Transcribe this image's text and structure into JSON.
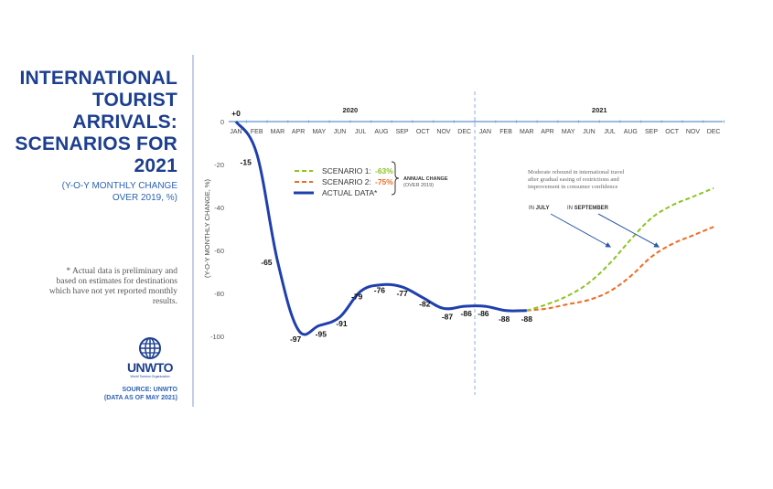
{
  "side_panel": {
    "title_lines": [
      "INTERNATIONAL",
      "TOURIST",
      "ARRIVALS:",
      "SCENARIOS FOR",
      "2021"
    ],
    "subtitle_lines": [
      "(Y-O-Y MONTHLY CHANGE",
      "OVER 2019, %)"
    ],
    "note_lines": [
      "* Actual data is preliminary and",
      "based on estimates for destinations",
      "which have not yet reported monthly",
      "results."
    ],
    "logo": {
      "wordmark": "UNWTO",
      "tagline": "World Tourism Organization",
      "icon": "globe-icon"
    },
    "source_lines": [
      "SOURCE: UNWTO",
      "(DATA AS OF MAY 2021)"
    ]
  },
  "colors": {
    "brand": "#1d3f8f",
    "actual": "#1f3fae",
    "scenario1": "#8cc31f",
    "scenario2": "#f26a21",
    "axis": "#7aa6d6",
    "divider": "#8fb0dc"
  },
  "chart_data": {
    "type": "line",
    "title": "International Tourist Arrivals: Scenarios for 2021",
    "xlabel": "",
    "ylabel": "(Y-O-Y MONTHLY CHANGE, %)",
    "ylim": [
      -100,
      0
    ],
    "yticks": [
      "0",
      "-20",
      "-40",
      "-60",
      "-80",
      "-100"
    ],
    "ytick_values": [
      0,
      -20,
      -40,
      -60,
      -80,
      -100
    ],
    "year_labels": [
      "2020",
      "2021"
    ],
    "categories": [
      "JAN",
      "FEB",
      "MAR",
      "APR",
      "MAY",
      "JUN",
      "JUL",
      "AUG",
      "SEP",
      "OCT",
      "NOV",
      "DEC",
      "JAN",
      "FEB",
      "MAR",
      "APR",
      "MAY",
      "JUN",
      "JUL",
      "AUG",
      "SEP",
      "OCT",
      "NOV",
      "DEC"
    ],
    "grid": false,
    "legend_position": "top-center",
    "series": [
      {
        "name": "ACTUAL DATA*",
        "key": "actual",
        "style": "solid",
        "start_index": 0,
        "values": [
          0,
          -15,
          -65,
          -97,
          -95,
          -91,
          -79,
          -76,
          -77,
          -82,
          -87,
          -86,
          -86,
          -88,
          -88
        ],
        "labels": [
          "+0",
          "-15",
          "-65",
          "-97",
          "-95",
          "-91",
          "-79",
          "-76",
          "-77",
          "-82",
          "-87",
          "-86",
          "-86",
          "-88",
          "-88"
        ]
      },
      {
        "name": "SCENARIO 1:",
        "key": "scenario1",
        "style": "dashed",
        "annual_change": "-63%",
        "start_index": 14,
        "values": [
          -88,
          -85,
          -81,
          -75,
          -66,
          -55,
          -45,
          -39,
          -35,
          -31
        ]
      },
      {
        "name": "SCENARIO 2:",
        "key": "scenario2",
        "style": "dashed",
        "annual_change": "-75%",
        "start_index": 14,
        "values": [
          -88,
          -87,
          -85,
          -83,
          -79,
          -72,
          -63,
          -57,
          -53,
          -49
        ]
      }
    ],
    "legend_note": [
      "ANNUAL CHANGE",
      "(OVER 2019)"
    ],
    "annotations": {
      "rebound_text": [
        "Moderate rebound in international travel",
        "after gradual easing of restrictions and",
        "improvement in consumer confidence"
      ],
      "arrow1": {
        "prefix": "IN ",
        "month": "JULY"
      },
      "arrow2": {
        "prefix": "IN ",
        "month": "SEPTEMBER"
      }
    }
  }
}
